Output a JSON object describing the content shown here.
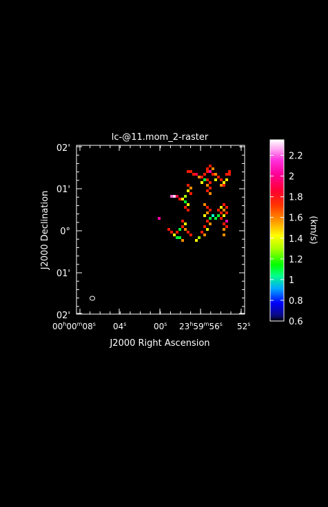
{
  "title": "lc-@11.mom_2-raster",
  "xlabel": "J2000 Right Ascension",
  "ylabel": "J2000 Declination",
  "colorbar_label": "(km/s)",
  "x_ticks": [
    {
      "major": "00",
      "hsup": "h",
      "minor": "00",
      "msup": "m",
      "sec": "08",
      "ssup": "s"
    },
    {
      "sec": "04",
      "ssup": "s"
    },
    {
      "sec": "00",
      "ssup": "s"
    },
    {
      "major": "23",
      "hsup": "h",
      "minor": "59",
      "msup": "m",
      "sec": "56",
      "ssup": "s"
    },
    {
      "sec": "52",
      "ssup": "s"
    }
  ],
  "y_ticks": [
    "02'",
    "01'",
    "0°",
    "01'",
    "02'"
  ],
  "colorbar": {
    "ticks": [
      "2.2",
      "2",
      "1.8",
      "1.6",
      "1.4",
      "1.2",
      "1",
      "0.8",
      "0.6"
    ],
    "min": 0.6,
    "max": 2.35
  },
  "colors": {
    "background": "#000000",
    "foreground": "#ffffff"
  }
}
